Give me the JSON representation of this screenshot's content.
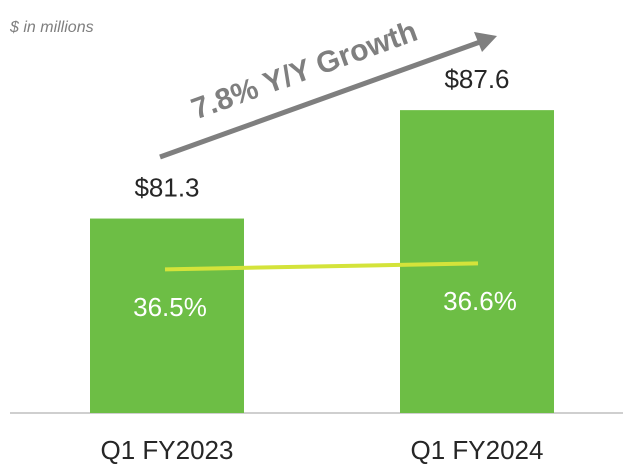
{
  "chart_data": {
    "type": "bar",
    "subtitle": "$ in millions",
    "annotation": "7.8% Y/Y Growth",
    "categories": [
      "Q1 FY2023",
      "Q1 FY2024"
    ],
    "series": [
      {
        "type": "bar",
        "color": "#6dbe45",
        "values": [
          81.3,
          87.6
        ],
        "value_labels": [
          "$81.3",
          "$87.6"
        ]
      },
      {
        "type": "line",
        "axis": "y2",
        "color": "#d4e33a",
        "values": [
          36.5,
          36.6
        ],
        "value_labels": [
          "36.5%",
          "36.6%"
        ]
      }
    ],
    "ylim": [
      70,
      94
    ],
    "y2lim": [
      34.1,
      41
    ]
  }
}
